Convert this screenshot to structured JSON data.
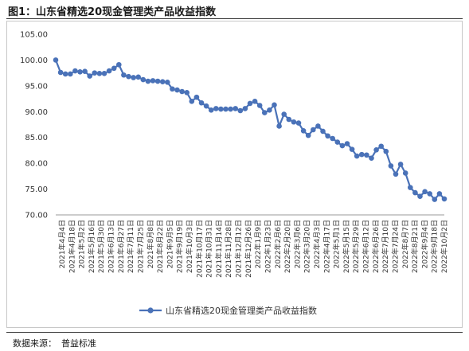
{
  "figure": {
    "title": "图1：山东省精选20现金管理类产品收益指数",
    "source_label": "数据来源：",
    "source_value": "普益标准"
  },
  "colors": {
    "series": "#4a72b8",
    "axis": "#999999"
  },
  "chart_data": {
    "type": "line",
    "title": "",
    "xlabel": "",
    "ylabel": "",
    "ylim": [
      70,
      105
    ],
    "yticks": [
      "70.00",
      "75.00",
      "80.00",
      "85.00",
      "90.00",
      "95.00",
      "100.00",
      "105.00"
    ],
    "ytick_values": [
      70,
      75,
      80,
      85,
      90,
      95,
      100,
      105
    ],
    "grid": false,
    "legend_position": "bottom",
    "x_tick_labels": [
      "2021年4月4日",
      "2021年4月18日",
      "2021年5月2日",
      "2021年5月16日",
      "2021年5月30日",
      "2021年6月13日",
      "2021年6月27日",
      "2021年7月11日",
      "2021年7月25日",
      "2021年8月8日",
      "2021年8月22日",
      "2021年9月5日",
      "2021年9月19日",
      "2021年10月3日",
      "2021年10月17日",
      "2021年10月31日",
      "2021年11月14日",
      "2021年11月28日",
      "2021年12月12日",
      "2021年12月26日",
      "2022年1月9日",
      "2022年1月23日",
      "2022年2月6日",
      "2022年2月20日",
      "2022年3月6日",
      "2022年3月20日",
      "2022年4月3日",
      "2022年4月17日",
      "2022年5月1日",
      "2022年5月15日",
      "2022年5月29日",
      "2022年6月12日",
      "2022年6月26日",
      "2022年7月10日",
      "2022年7月24日",
      "2022年8月7日",
      "2022年8月21日",
      "2022年9月4日",
      "2022年9月18日",
      "2022年10月2日"
    ],
    "series": [
      {
        "name": "山东省精选20现金管理类产品收益指数",
        "values": [
          100.0,
          97.6,
          97.3,
          97.3,
          97.9,
          97.7,
          97.8,
          96.9,
          97.5,
          97.4,
          97.4,
          97.9,
          98.4,
          99.1,
          97.1,
          96.8,
          96.6,
          96.7,
          96.2,
          95.9,
          96.0,
          95.9,
          95.8,
          95.7,
          94.4,
          94.2,
          93.9,
          93.7,
          92.0,
          92.8,
          91.7,
          91.1,
          90.3,
          90.6,
          90.5,
          90.5,
          90.5,
          90.6,
          90.2,
          90.6,
          91.6,
          92.0,
          91.2,
          89.8,
          90.3,
          91.3,
          87.2,
          89.5,
          88.5,
          88.0,
          87.8,
          86.3,
          85.4,
          86.5,
          87.2,
          86.2,
          85.3,
          84.8,
          84.1,
          83.4,
          83.8,
          82.7,
          81.4,
          81.7,
          81.6,
          81.0,
          82.6,
          83.3,
          82.3,
          79.5,
          77.9,
          79.8,
          78.1,
          75.3,
          74.3,
          73.6,
          74.5,
          74.1,
          73.0,
          74.1,
          73.1
        ]
      }
    ]
  }
}
